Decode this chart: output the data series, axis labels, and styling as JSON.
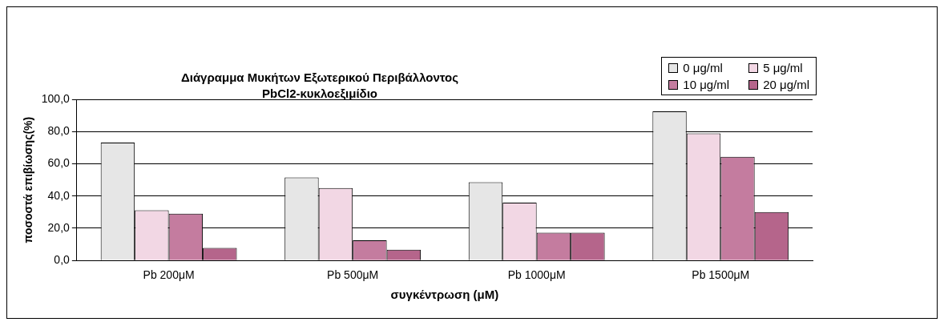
{
  "chart_data": {
    "type": "bar",
    "title": "Διάγραμμα  Μυκήτων Εξωτερικού Περιβάλλοντος\nPbCl2-κυκλοεξιμίδιο",
    "xlabel": "συγκέντρωση (μM)",
    "ylabel": "ποσοστά επιβίωσης(%)",
    "categories": [
      "Pb 200μM",
      "Pb 500μM",
      "Pb 1000μM",
      "Pb 1500μM"
    ],
    "series": [
      {
        "name": "0 μg/ml",
        "color": "#e6e6e6",
        "values": [
          73.1,
          51.6,
          48.6,
          92.6
        ]
      },
      {
        "name": "5 μg/ml",
        "color": "#f2d7e4",
        "values": [
          31.2,
          44.9,
          35.9,
          78.9
        ]
      },
      {
        "name": "10 μg/ml",
        "color": "#c47c9f",
        "values": [
          29.0,
          12.5,
          17.3,
          64.3
        ]
      },
      {
        "name": "20 μg/ml",
        "color": "#b5658b",
        "values": [
          7.8,
          6.7,
          17.3,
          30.0
        ]
      }
    ],
    "ylim": [
      0,
      100
    ],
    "yticks": [
      {
        "value": 0,
        "label": "0,0"
      },
      {
        "value": 20,
        "label": "20,0"
      },
      {
        "value": 40,
        "label": "40,0"
      },
      {
        "value": 60,
        "label": "60,0"
      },
      {
        "value": 80,
        "label": "80,0"
      },
      {
        "value": 100,
        "label": "100,0"
      }
    ],
    "grid": "y",
    "legend": "top right"
  }
}
